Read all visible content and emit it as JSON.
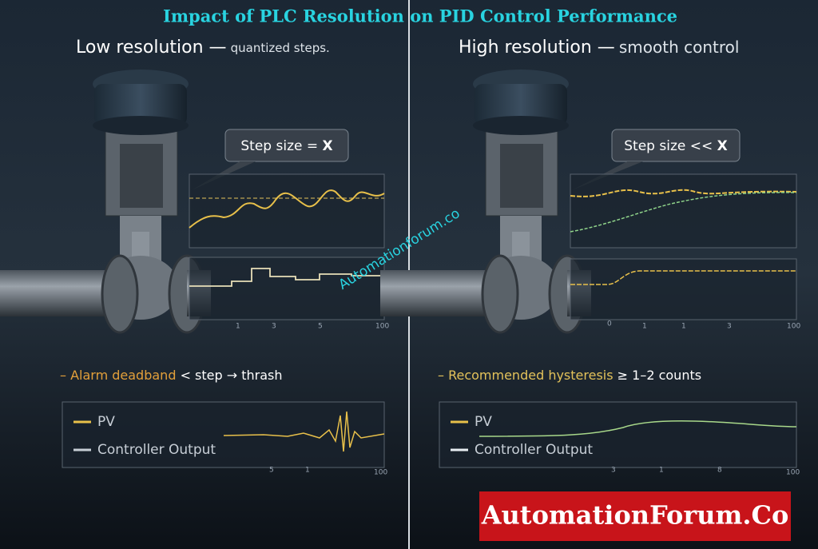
{
  "title": "Impact of PLC Resolution on PID Control Performance",
  "left": {
    "heading": "Low resolution —",
    "subheading": "quantized steps.",
    "callout": {
      "text": "Step size =",
      "symbol": "X"
    },
    "upper_chart_ticks": [
      "1",
      "3",
      "5",
      "100"
    ],
    "note": {
      "highlight": "– Alarm deadband",
      "text": "< step → thrash"
    },
    "legend": [
      "PV",
      "Controller Output"
    ],
    "lower_chart_ticks": [
      "5",
      "1",
      "100"
    ]
  },
  "right": {
    "heading": "High resolution —",
    "subheading": "smooth control",
    "callout": {
      "text": "Step size <<",
      "symbol": "X"
    },
    "upper_chart_ticks": [
      "0",
      "1",
      "1",
      "3",
      "100"
    ],
    "note": {
      "highlight": "– Recommended hysteresis",
      "text": "≥ 1–2 counts"
    },
    "legend": [
      "PV",
      "Controller Output"
    ],
    "lower_chart_ticks": [
      "3",
      "1",
      "8",
      "100"
    ]
  },
  "watermark": "Automationforum.co",
  "brand": "AutomationForum.Co"
}
